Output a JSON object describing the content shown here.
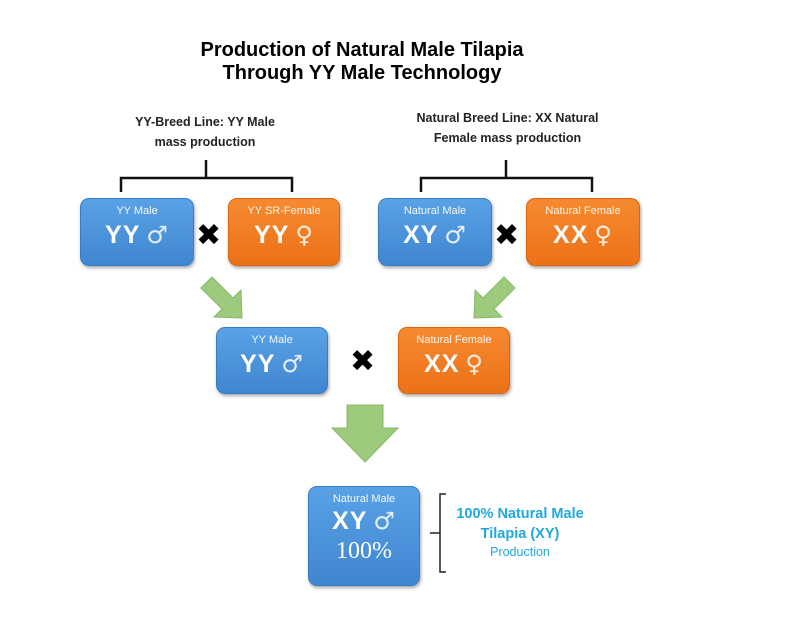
{
  "title": {
    "line1": "Production of Natural Male Tilapia",
    "line2": "Through YY Male Technology"
  },
  "left_line": {
    "line1": "YY-Breed Line: YY Male",
    "line2": "mass production"
  },
  "right_line": {
    "line1": "Natural Breed Line: XX Natural",
    "line2": "Female mass production"
  },
  "boxes": [
    {
      "label": "YY Male",
      "genotype": "YY",
      "sex": "♂",
      "color": "blue"
    },
    {
      "label": "YY SR-Female",
      "genotype": "YY",
      "sex": "♀",
      "color": "orange"
    },
    {
      "label": "Natural Male",
      "genotype": "XY",
      "sex": "♂",
      "color": "blue"
    },
    {
      "label": "Natural Female",
      "genotype": "XX",
      "sex": "♀",
      "color": "orange"
    },
    {
      "label": "YY Male",
      "genotype": "YY",
      "sex": "♂",
      "color": "blue"
    },
    {
      "label": "Natural Female",
      "genotype": "XX",
      "sex": "♀",
      "color": "orange"
    },
    {
      "label": "Natural Male",
      "genotype": "XY",
      "sex": "♂",
      "percent": "100%",
      "color": "blue"
    }
  ],
  "cross_symbol": "✖",
  "result": {
    "line1": "100% Natural Male",
    "line2": "Tilapia (XY)",
    "line3": "Production"
  },
  "colors": {
    "blue": "#4a90d9",
    "orange": "#f07b22",
    "arrow": "#9dca7c",
    "result_text": "#1fa8de"
  }
}
